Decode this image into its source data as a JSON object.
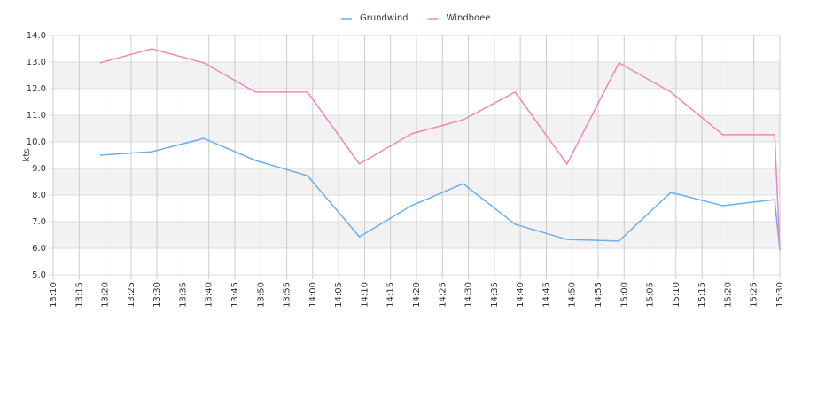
{
  "chart_data": {
    "type": "line",
    "y_label": "kts",
    "legend": "top",
    "grid": true,
    "bands": true,
    "x": [
      "13:19",
      "13:29",
      "13:39",
      "13:49",
      "13:59",
      "14:09",
      "14:19",
      "14:29",
      "14:39",
      "14:49",
      "14:59",
      "15:09",
      "15:19",
      "15:29",
      "15:30"
    ],
    "series": [
      {
        "name": "Grundwind",
        "color": "#6aaff0",
        "values": [
          9.5,
          9.63,
          10.13,
          9.3,
          8.73,
          6.43,
          7.6,
          8.43,
          6.9,
          6.33,
          6.27,
          8.1,
          7.6,
          7.83,
          5.93
        ]
      },
      {
        "name": "Windboee",
        "color": "#ee88b8",
        "values": [
          12.97,
          13.5,
          12.97,
          11.87,
          11.87,
          9.17,
          10.3,
          10.83,
          11.87,
          9.17,
          12.97,
          11.87,
          10.27,
          10.27,
          5.93
        ]
      }
    ],
    "xlim": [
      "13:10",
      "15:30"
    ],
    "xticks": [
      "13:10",
      "13:15",
      "13:20",
      "13:25",
      "13:30",
      "13:35",
      "13:40",
      "13:45",
      "13:50",
      "13:55",
      "14:00",
      "14:05",
      "14:10",
      "14:15",
      "14:20",
      "14:25",
      "14:30",
      "14:35",
      "14:40",
      "14:45",
      "14:50",
      "14:55",
      "15:00",
      "15:05",
      "15:10",
      "15:15",
      "15:20",
      "15:25",
      "15:30"
    ],
    "ylim": [
      5,
      14
    ],
    "yticks": [
      {
        "value": 5,
        "label": "5.0"
      },
      {
        "value": 6,
        "label": "6.0"
      },
      {
        "value": 7,
        "label": "7.0"
      },
      {
        "value": 8,
        "label": "8.0"
      },
      {
        "value": 9,
        "label": "9.0"
      },
      {
        "value": 10,
        "label": "10.0"
      },
      {
        "value": 11,
        "label": "11.0"
      },
      {
        "value": 12,
        "label": "12.0"
      },
      {
        "value": 13,
        "label": "13.0"
      },
      {
        "value": 14,
        "label": "14.0"
      }
    ]
  }
}
